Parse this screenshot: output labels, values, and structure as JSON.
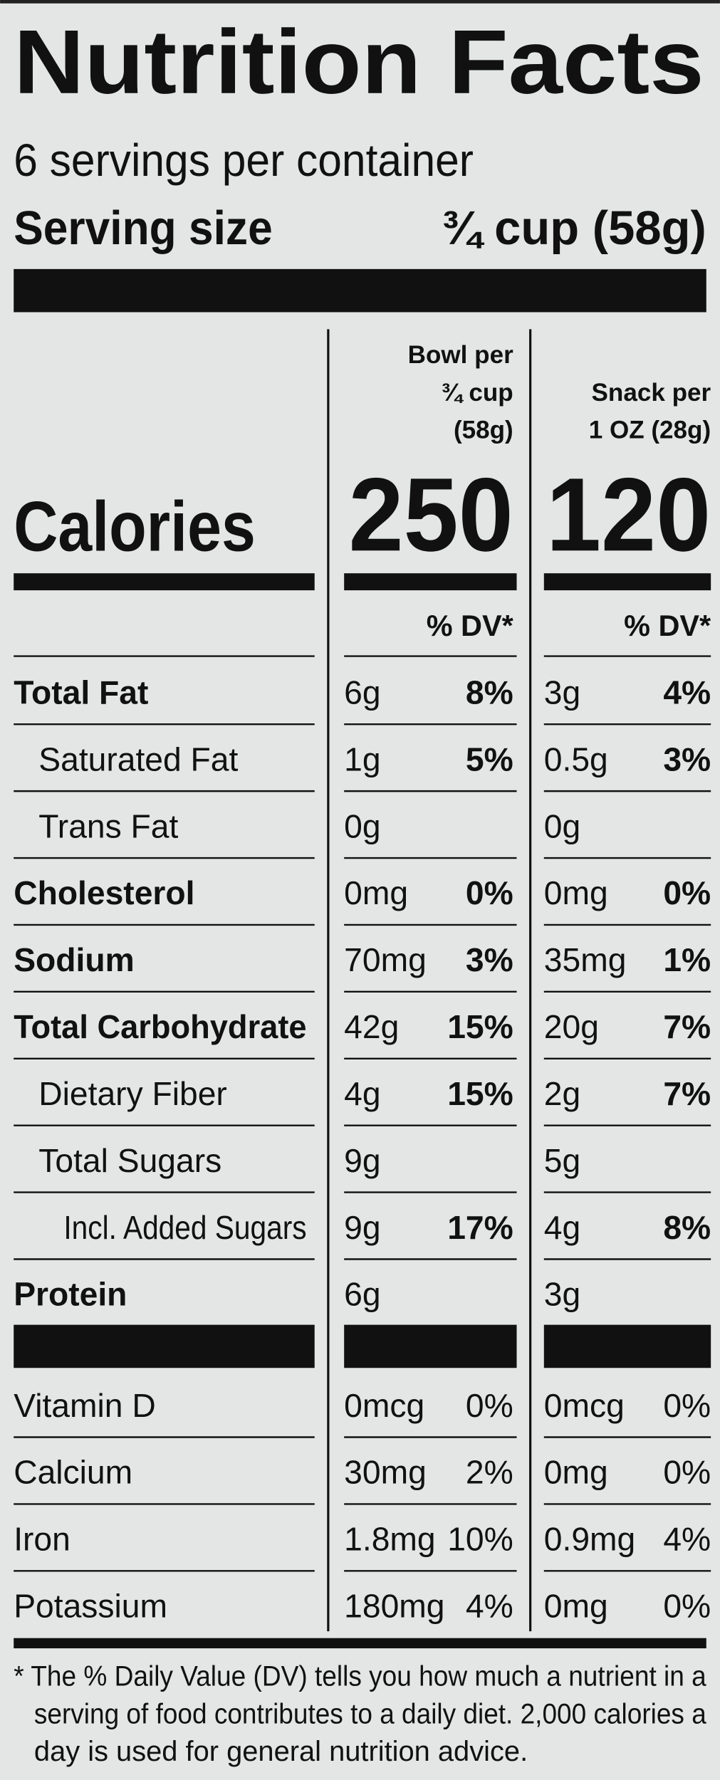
{
  "header": {
    "title": "Nutrition Facts",
    "servings": "6 servings per container",
    "serving_size_label": "Serving size",
    "serving_size": "¾ cup (58g)"
  },
  "calories_label": "Calories",
  "columns": [
    {
      "label_lines": [
        "Bowl per",
        "¾ cup",
        "(58g)"
      ],
      "calories": "250",
      "dv_header": "% DV*"
    },
    {
      "label_lines": [
        "Snack per",
        "1 OZ (28g)"
      ],
      "calories": "120",
      "dv_header": "% DV*"
    }
  ],
  "nutrients": [
    {
      "name": "Total Fat",
      "bold": true,
      "indent": 0,
      "values": [
        [
          "6g",
          "8%"
        ],
        [
          "3g",
          "4%"
        ]
      ]
    },
    {
      "name": "Saturated Fat",
      "bold": false,
      "indent": 1,
      "values": [
        [
          "1g",
          "5%"
        ],
        [
          "0.5g",
          "3%"
        ]
      ]
    },
    {
      "name": "Trans Fat",
      "bold": false,
      "indent": 1,
      "values": [
        [
          "0g",
          null
        ],
        [
          "0g",
          null
        ]
      ]
    },
    {
      "name": "Cholesterol",
      "bold": true,
      "indent": 0,
      "values": [
        [
          "0mg",
          "0%"
        ],
        [
          "0mg",
          "0%"
        ]
      ]
    },
    {
      "name": "Sodium",
      "bold": true,
      "indent": 0,
      "values": [
        [
          "70mg",
          "3%"
        ],
        [
          "35mg",
          "1%"
        ]
      ]
    },
    {
      "name": "Total Carbohydrate",
      "bold": true,
      "indent": 0,
      "values": [
        [
          "42g",
          "15%"
        ],
        [
          "20g",
          "7%"
        ]
      ]
    },
    {
      "name": "Dietary Fiber",
      "bold": false,
      "indent": 1,
      "values": [
        [
          "4g",
          "15%"
        ],
        [
          "2g",
          "7%"
        ]
      ]
    },
    {
      "name": "Total Sugars",
      "bold": false,
      "indent": 1,
      "values": [
        [
          "9g",
          null
        ],
        [
          "5g",
          null
        ]
      ]
    },
    {
      "name": "Incl. Added Sugars",
      "bold": false,
      "indent": 2,
      "values": [
        [
          "9g",
          "17%"
        ],
        [
          "4g",
          "8%"
        ]
      ]
    },
    {
      "name": "Protein",
      "bold": true,
      "indent": 0,
      "values": [
        [
          "6g",
          null
        ],
        [
          "3g",
          null
        ]
      ]
    }
  ],
  "vitamins": [
    {
      "name": "Vitamin D",
      "values": [
        [
          "0mcg",
          "0%"
        ],
        [
          "0mcg",
          "0%"
        ]
      ]
    },
    {
      "name": "Calcium",
      "values": [
        [
          "30mg",
          "2%"
        ],
        [
          "0mg",
          "0%"
        ]
      ]
    },
    {
      "name": "Iron",
      "values": [
        [
          "1.8mg",
          "10%"
        ],
        [
          "0.9mg",
          "4%"
        ]
      ]
    },
    {
      "name": "Potassium",
      "values": [
        [
          "180mg",
          "4%"
        ],
        [
          "0mg",
          "0%"
        ]
      ]
    }
  ],
  "footnote": [
    "* The % Daily Value (DV) tells you how much a nutrient in a",
    "serving of food contributes to a daily diet. 2,000 calories a",
    "day is used for general nutrition advice."
  ]
}
